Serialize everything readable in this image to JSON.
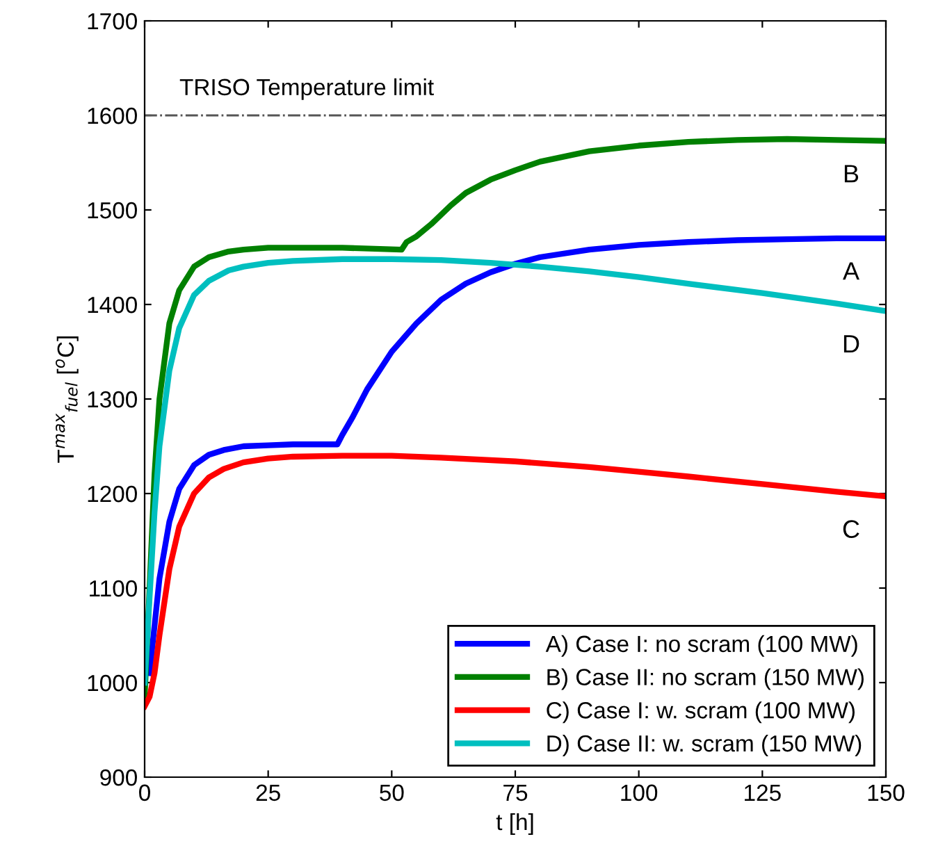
{
  "chart_data": {
    "type": "line",
    "xlabel": "t [h]",
    "ylabel": "T$^{max}$$_{fuel}$ [$^{o}$C]",
    "xlim": [
      0,
      150
    ],
    "ylim": [
      900,
      1700
    ],
    "xticks": [
      0,
      25,
      50,
      75,
      100,
      125,
      150
    ],
    "yticks": [
      900,
      1000,
      1100,
      1200,
      1300,
      1400,
      1500,
      1600,
      1700
    ],
    "grid": false,
    "legend": "bottom right",
    "line_style": "solid",
    "marker": "none",
    "series": [
      {
        "name": "A) Case I: no scram (100 MW)",
        "color": "#0000ff",
        "x": [
          1,
          2,
          3,
          5,
          7,
          10,
          13,
          16,
          20,
          25,
          30,
          39,
          40,
          42,
          45,
          50,
          55,
          60,
          65,
          70,
          75,
          80,
          90,
          100,
          110,
          120,
          130,
          140,
          150
        ],
        "values": [
          1010,
          1060,
          1110,
          1170,
          1205,
          1230,
          1241,
          1246,
          1250,
          1251,
          1252,
          1252,
          1262,
          1280,
          1310,
          1350,
          1380,
          1405,
          1422,
          1434,
          1443,
          1450,
          1458,
          1463,
          1466,
          1468,
          1469,
          1470,
          1470
        ]
      },
      {
        "name": "B) Case II: no scram (150 MW)",
        "color": "#008000",
        "x": [
          0,
          1,
          2,
          3,
          5,
          7,
          10,
          13,
          17,
          20,
          25,
          30,
          40,
          52,
          53,
          55,
          58,
          62,
          65,
          70,
          75,
          80,
          90,
          100,
          110,
          120,
          130,
          140,
          150
        ],
        "values": [
          985,
          1100,
          1220,
          1300,
          1380,
          1415,
          1440,
          1450,
          1456,
          1458,
          1460,
          1460,
          1460,
          1458,
          1466,
          1472,
          1485,
          1505,
          1518,
          1532,
          1542,
          1551,
          1562,
          1568,
          1572,
          1574,
          1575,
          1574,
          1573
        ]
      },
      {
        "name": "C) Case I: w. scram (100 MW)",
        "color": "#ff0000",
        "x": [
          0,
          1,
          2,
          3,
          5,
          7,
          10,
          13,
          16,
          20,
          25,
          30,
          40,
          50,
          60,
          75,
          90,
          100,
          110,
          125,
          140,
          150
        ],
        "values": [
          975,
          985,
          1010,
          1050,
          1120,
          1165,
          1200,
          1217,
          1226,
          1233,
          1237,
          1239,
          1240,
          1240,
          1238,
          1234,
          1228,
          1223,
          1218,
          1210,
          1202,
          1197
        ]
      },
      {
        "name": "D) Case II: w. scram (150 MW)",
        "color": "#00bfbf",
        "x": [
          0,
          1,
          2,
          3,
          5,
          7,
          10,
          13,
          17,
          20,
          25,
          30,
          40,
          50,
          60,
          70,
          80,
          90,
          100,
          110,
          125,
          140,
          150
        ],
        "values": [
          1000,
          1090,
          1180,
          1250,
          1330,
          1375,
          1410,
          1425,
          1436,
          1440,
          1444,
          1446,
          1448,
          1448,
          1447,
          1444,
          1440,
          1435,
          1429,
          1422,
          1412,
          1401,
          1393
        ]
      }
    ],
    "ref_lines": [
      {
        "axis": "y",
        "value": 1600,
        "label": "TRISO Temperature limit",
        "color": "#555555",
        "line_style": "dashdot"
      }
    ],
    "annotations": [
      "A",
      "B",
      "C",
      "D"
    ]
  }
}
